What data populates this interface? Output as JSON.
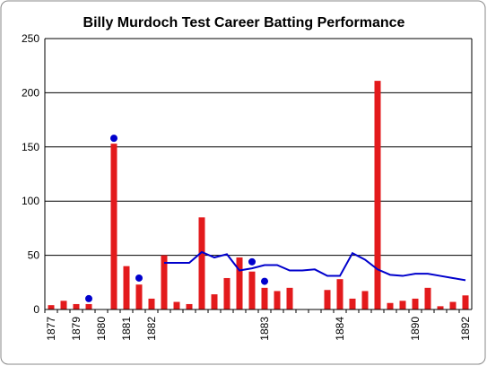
{
  "chart_data": {
    "type": "bar",
    "title": "Billy Murdoch Test Career Batting Performance",
    "categories": [
      "1877",
      null,
      "1879",
      null,
      "1880",
      null,
      "1881",
      null,
      "1882",
      null,
      null,
      null,
      null,
      null,
      null,
      null,
      null,
      "1883",
      null,
      null,
      null,
      null,
      null,
      "1884",
      null,
      null,
      null,
      null,
      null,
      "1890",
      null,
      null,
      null,
      "1892"
    ],
    "series": [
      {
        "type": "bar",
        "color": "#e31a1c",
        "values": [
          4,
          8,
          5,
          5,
          0,
          153,
          40,
          23,
          10,
          50,
          7,
          5,
          85,
          14,
          29,
          48,
          35,
          20,
          17,
          20,
          0,
          0,
          18,
          28,
          10,
          17,
          211,
          6,
          8,
          10,
          20,
          3,
          7,
          13
        ]
      },
      {
        "type": "scatter",
        "color": "#0000cc",
        "values": [
          null,
          null,
          null,
          10,
          null,
          158,
          null,
          29,
          null,
          null,
          null,
          null,
          null,
          null,
          null,
          null,
          44,
          26,
          null,
          null,
          null,
          null,
          null,
          null,
          null,
          null,
          null,
          null,
          null,
          null,
          null,
          null,
          null,
          null
        ]
      },
      {
        "type": "line",
        "color": "#0000cc",
        "values": [
          null,
          null,
          null,
          null,
          null,
          null,
          null,
          null,
          null,
          43,
          43,
          43,
          53,
          48,
          51,
          36,
          38,
          41,
          41,
          36,
          36,
          37,
          31,
          31,
          52,
          46,
          37,
          32,
          31,
          33,
          33,
          31,
          29,
          27
        ]
      }
    ],
    "ylim": [
      0,
      250
    ],
    "yticks": [
      0,
      50,
      100,
      150,
      200,
      250
    ],
    "grid": true
  }
}
